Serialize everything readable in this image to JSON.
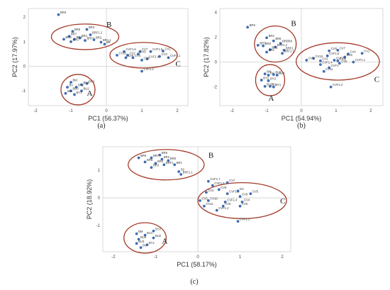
{
  "chart_data": [
    {
      "id": "a",
      "type": "scatter",
      "caption": "(a)",
      "xlabel": "PC1 (56.37%)",
      "ylabel": "PC2 (17.97%)",
      "xlim": [
        -2.2,
        2.3
      ],
      "ylim": [
        -1.6,
        2.35
      ],
      "xticks": [
        "-2",
        "-1",
        "0",
        "1",
        "2"
      ],
      "xtick_vals": [
        -2,
        -1,
        0,
        1,
        2
      ],
      "yticks": [
        "2",
        "1",
        "0",
        "-1"
      ],
      "ytick_vals": [
        2,
        1,
        0,
        -1
      ],
      "groups": [
        {
          "label": "A",
          "center": [
            -0.8,
            -0.95
          ],
          "r": [
            0.48,
            0.62
          ],
          "label_at": [
            -0.55,
            -1.2
          ]
        },
        {
          "label": "B",
          "center": [
            -0.6,
            1.2
          ],
          "r": [
            0.95,
            0.52
          ],
          "label_at": [
            0.0,
            1.6
          ]
        },
        {
          "label": "C",
          "center": [
            1.05,
            0.45
          ],
          "r": [
            0.95,
            0.52
          ],
          "label_at": [
            1.95,
            0.0
          ]
        }
      ],
      "points": [
        {
          "label": "BR9",
          "x": -1.35,
          "y": 2.1
        },
        {
          "label": "BR3",
          "x": -0.55,
          "y": 1.5
        },
        {
          "label": "BR6",
          "x": -0.95,
          "y": 1.42
        },
        {
          "label": "BRF1.2",
          "x": -0.45,
          "y": 1.28
        },
        {
          "label": "BR7",
          "x": -1.05,
          "y": 1.22
        },
        {
          "label": "BR1",
          "x": -0.75,
          "y": 1.15
        },
        {
          "label": "BR8",
          "x": -1.2,
          "y": 1.1
        },
        {
          "label": "BR4",
          "x": -0.9,
          "y": 1.1
        },
        {
          "label": "BR5",
          "x": -1.0,
          "y": 1.0
        },
        {
          "label": "BRF1",
          "x": -0.6,
          "y": 1.05
        },
        {
          "label": "BR2",
          "x": -0.35,
          "y": 1.08
        },
        {
          "label": "BR1.1",
          "x": -0.15,
          "y": 0.98
        },
        {
          "label": "BR",
          "x": -0.05,
          "y": 0.9
        },
        {
          "label": "CV1",
          "x": 1.6,
          "y": 0.62
        },
        {
          "label": "CVF1.6",
          "x": 0.5,
          "y": 0.6
        },
        {
          "label": "CV7",
          "x": 0.95,
          "y": 0.6
        },
        {
          "label": "CVF1.5",
          "x": 1.25,
          "y": 0.6
        },
        {
          "label": "CV10",
          "x": 0.3,
          "y": 0.45
        },
        {
          "label": "CV2",
          "x": 0.6,
          "y": 0.45
        },
        {
          "label": "CV6",
          "x": 0.9,
          "y": 0.5
        },
        {
          "label": "CV3",
          "x": 1.5,
          "y": 0.4
        },
        {
          "label": "CV9",
          "x": 0.55,
          "y": 0.35
        },
        {
          "label": "CV4",
          "x": 0.75,
          "y": 0.35
        },
        {
          "label": "CVF1.4",
          "x": 1.15,
          "y": 0.3
        },
        {
          "label": "CVF1.1",
          "x": 1.75,
          "y": 0.35
        },
        {
          "label": "CV8",
          "x": 1.0,
          "y": 0.25
        },
        {
          "label": "CVF1.2",
          "x": 1.0,
          "y": -0.2
        },
        {
          "label": "BY3",
          "x": -0.55,
          "y": -0.7
        },
        {
          "label": "BM",
          "x": -1.0,
          "y": -0.65
        },
        {
          "label": "BU1",
          "x": -0.7,
          "y": -0.75
        },
        {
          "label": "BY2",
          "x": -0.85,
          "y": -0.85
        },
        {
          "label": "BV",
          "x": -1.1,
          "y": -0.85
        },
        {
          "label": "BU3",
          "x": -1.0,
          "y": -1.0
        },
        {
          "label": "BU2",
          "x": -0.7,
          "y": -1.0
        },
        {
          "label": "BY1",
          "x": -0.9,
          "y": -1.15
        },
        {
          "label": "BU",
          "x": -1.15,
          "y": -1.1
        }
      ]
    },
    {
      "id": "b",
      "type": "scatter",
      "caption": "(b)",
      "xlabel": "PC1 (54.94%)",
      "ylabel": "PC2 (17.82%)",
      "xlim": [
        -2.35,
        2.35
      ],
      "ylim": [
        -3.5,
        4.3
      ],
      "xticks": [
        "-2",
        "-1",
        "0",
        "1",
        "2"
      ],
      "xtick_vals": [
        -2,
        -1,
        0,
        1,
        2
      ],
      "yticks": [
        "4",
        "2",
        "0",
        "-2"
      ],
      "ytick_vals": [
        4,
        2,
        0,
        -2
      ],
      "groups": [
        {
          "label": "A",
          "center": [
            -0.9,
            -1.45
          ],
          "r": [
            0.42,
            1.25
          ],
          "label_at": [
            -0.95,
            -3.1
          ]
        },
        {
          "label": "B",
          "center": [
            -0.75,
            1.45
          ],
          "r": [
            0.6,
            1.45
          ],
          "label_at": [
            -0.3,
            2.9
          ]
        },
        {
          "label": "C",
          "center": [
            1.05,
            0.05
          ],
          "r": [
            1.2,
            1.5
          ],
          "label_at": [
            2.1,
            -1.6
          ]
        }
      ],
      "points": [
        {
          "label": "BR9",
          "x": -1.55,
          "y": 2.8
        },
        {
          "label": "BR3",
          "x": -1.0,
          "y": 1.95
        },
        {
          "label": "BR6",
          "x": -0.8,
          "y": 1.7
        },
        {
          "label": "BRBR4",
          "x": -0.6,
          "y": 1.5
        },
        {
          "label": "BR7",
          "x": -1.25,
          "y": 1.35
        },
        {
          "label": "BR8",
          "x": -1.1,
          "y": 1.3
        },
        {
          "label": "BRF1.2",
          "x": -0.75,
          "y": 1.2
        },
        {
          "label": "BR5",
          "x": -0.9,
          "y": 1.0
        },
        {
          "label": "BRF1",
          "x": -0.5,
          "y": 0.95
        },
        {
          "label": "BR2",
          "x": -1.0,
          "y": 0.8
        },
        {
          "label": "BRF1.1",
          "x": -0.55,
          "y": 0.7
        },
        {
          "label": "CV8",
          "x": 0.8,
          "y": 0.9
        },
        {
          "label": "CV7",
          "x": 1.05,
          "y": 0.95
        },
        {
          "label": "CV4",
          "x": 1.35,
          "y": 0.65
        },
        {
          "label": "CV1",
          "x": 1.75,
          "y": 0.7
        },
        {
          "label": "CVF1.6",
          "x": 0.75,
          "y": 0.5
        },
        {
          "label": "CV10",
          "x": 0.35,
          "y": 0.3
        },
        {
          "label": "CV6",
          "x": 1.25,
          "y": 0.4
        },
        {
          "label": "CV9",
          "x": 0.15,
          "y": 0.15
        },
        {
          "label": "CV2",
          "x": 0.55,
          "y": 0.1
        },
        {
          "label": "CVF1.5",
          "x": 0.95,
          "y": 0.15
        },
        {
          "label": "CV3",
          "x": 1.05,
          "y": 0.1
        },
        {
          "label": "CVF1.1",
          "x": 1.5,
          "y": 0.0
        },
        {
          "label": "CVF1.4",
          "x": 0.55,
          "y": -0.2
        },
        {
          "label": "CV5",
          "x": 1.1,
          "y": -0.1
        },
        {
          "label": "CVF1",
          "x": 0.8,
          "y": -0.45
        },
        {
          "label": "CV11",
          "x": 0.65,
          "y": -0.75
        },
        {
          "label": "CVF1.2",
          "x": 0.85,
          "y": -2.0
        },
        {
          "label": "BM",
          "x": -1.05,
          "y": -0.95
        },
        {
          "label": "BV",
          "x": -0.95,
          "y": -1.05
        },
        {
          "label": "BU2",
          "x": -0.8,
          "y": -1.0
        },
        {
          "label": "BU4",
          "x": -0.7,
          "y": -1.05
        },
        {
          "label": "BY2",
          "x": -1.15,
          "y": -1.45
        },
        {
          "label": "BY3",
          "x": -0.95,
          "y": -1.5
        },
        {
          "label": "BU3",
          "x": -1.05,
          "y": -1.95
        },
        {
          "label": "BY1",
          "x": -0.8,
          "y": -2.0
        },
        {
          "label": "BU",
          "x": -0.9,
          "y": -1.95
        }
      ]
    },
    {
      "id": "c",
      "type": "scatter",
      "caption": "(c)",
      "xlabel": "PC1 (58.17%)",
      "ylabel": "PC2 (18.92%)",
      "xlim": [
        -2.25,
        2.2
      ],
      "ylim": [
        -1.95,
        1.85
      ],
      "xticks": [
        "-2",
        "-1",
        "0",
        "1",
        "2"
      ],
      "xtick_vals": [
        -2,
        -1,
        0,
        1,
        2
      ],
      "yticks": [
        "1",
        "0",
        "-1"
      ],
      "ytick_vals": [
        1,
        0,
        -1
      ],
      "groups": [
        {
          "label": "A",
          "center": [
            -1.25,
            -1.45
          ],
          "r": [
            0.5,
            0.55
          ],
          "label_at": [
            -0.85,
            -1.65
          ]
        },
        {
          "label": "B",
          "center": [
            -0.75,
            1.2
          ],
          "r": [
            0.9,
            0.55
          ],
          "label_at": [
            0.25,
            1.45
          ]
        },
        {
          "label": "C",
          "center": [
            1.05,
            -0.1
          ],
          "r": [
            1.05,
            0.65
          ],
          "label_at": [
            1.95,
            -0.2
          ]
        }
      ],
      "points": [
        {
          "label": "BR5",
          "x": -0.9,
          "y": 1.55
        },
        {
          "label": "BR9",
          "x": -1.4,
          "y": 1.45
        },
        {
          "label": "BR7",
          "x": -1.1,
          "y": 1.45
        },
        {
          "label": "BR2",
          "x": -0.85,
          "y": 1.4
        },
        {
          "label": "BR8",
          "x": -0.7,
          "y": 1.35
        },
        {
          "label": "BR6",
          "x": -1.25,
          "y": 1.3
        },
        {
          "label": "BR4",
          "x": -1.0,
          "y": 1.25
        },
        {
          "label": "BRF1",
          "x": -0.8,
          "y": 1.2
        },
        {
          "label": "BR1",
          "x": -0.55,
          "y": 1.2
        },
        {
          "label": "BR3",
          "x": -1.1,
          "y": 1.1
        },
        {
          "label": "D2",
          "x": -0.45,
          "y": 0.95
        },
        {
          "label": "BRF1.1",
          "x": -0.4,
          "y": 0.85
        },
        {
          "label": "CVF1.7",
          "x": 0.25,
          "y": 0.6
        },
        {
          "label": "CV7",
          "x": 0.7,
          "y": 0.55
        },
        {
          "label": "CVF1.6",
          "x": 0.35,
          "y": 0.45
        },
        {
          "label": "CV8",
          "x": 0.5,
          "y": 0.3
        },
        {
          "label": "CV2",
          "x": 0.2,
          "y": 0.2
        },
        {
          "label": "CVF1.5",
          "x": 0.7,
          "y": 0.15
        },
        {
          "label": "D3",
          "x": 0.95,
          "y": 0.25
        },
        {
          "label": "CV5",
          "x": 1.25,
          "y": 0.15
        },
        {
          "label": "CV9",
          "x": 1.0,
          "y": 0.05
        },
        {
          "label": "CV3",
          "x": 0.05,
          "y": -0.1
        },
        {
          "label": "CV10",
          "x": 0.25,
          "y": -0.1
        },
        {
          "label": "CVF1.4",
          "x": 0.65,
          "y": -0.15
        },
        {
          "label": "CV4",
          "x": 1.05,
          "y": -0.15
        },
        {
          "label": "CV11",
          "x": 0.15,
          "y": -0.3
        },
        {
          "label": "CV6",
          "x": 0.6,
          "y": -0.3
        },
        {
          "label": "CV6",
          "x": 1.0,
          "y": -0.3
        },
        {
          "label": "CVF1.2",
          "x": 0.45,
          "y": -0.45
        },
        {
          "label": "CVF1.1",
          "x": 0.95,
          "y": -0.85
        },
        {
          "label": "BM",
          "x": -1.45,
          "y": -1.3
        },
        {
          "label": "BY2",
          "x": -1.05,
          "y": -1.2
        },
        {
          "label": "BU1",
          "x": -1.25,
          "y": -1.35
        },
        {
          "label": "BU2",
          "x": -1.05,
          "y": -1.45
        },
        {
          "label": "BU4",
          "x": -1.4,
          "y": -1.5
        },
        {
          "label": "BU3",
          "x": -1.45,
          "y": -1.65
        },
        {
          "label": "BY1",
          "x": -1.2,
          "y": -1.7
        },
        {
          "label": "BV",
          "x": -1.35,
          "y": -1.8
        }
      ]
    }
  ]
}
